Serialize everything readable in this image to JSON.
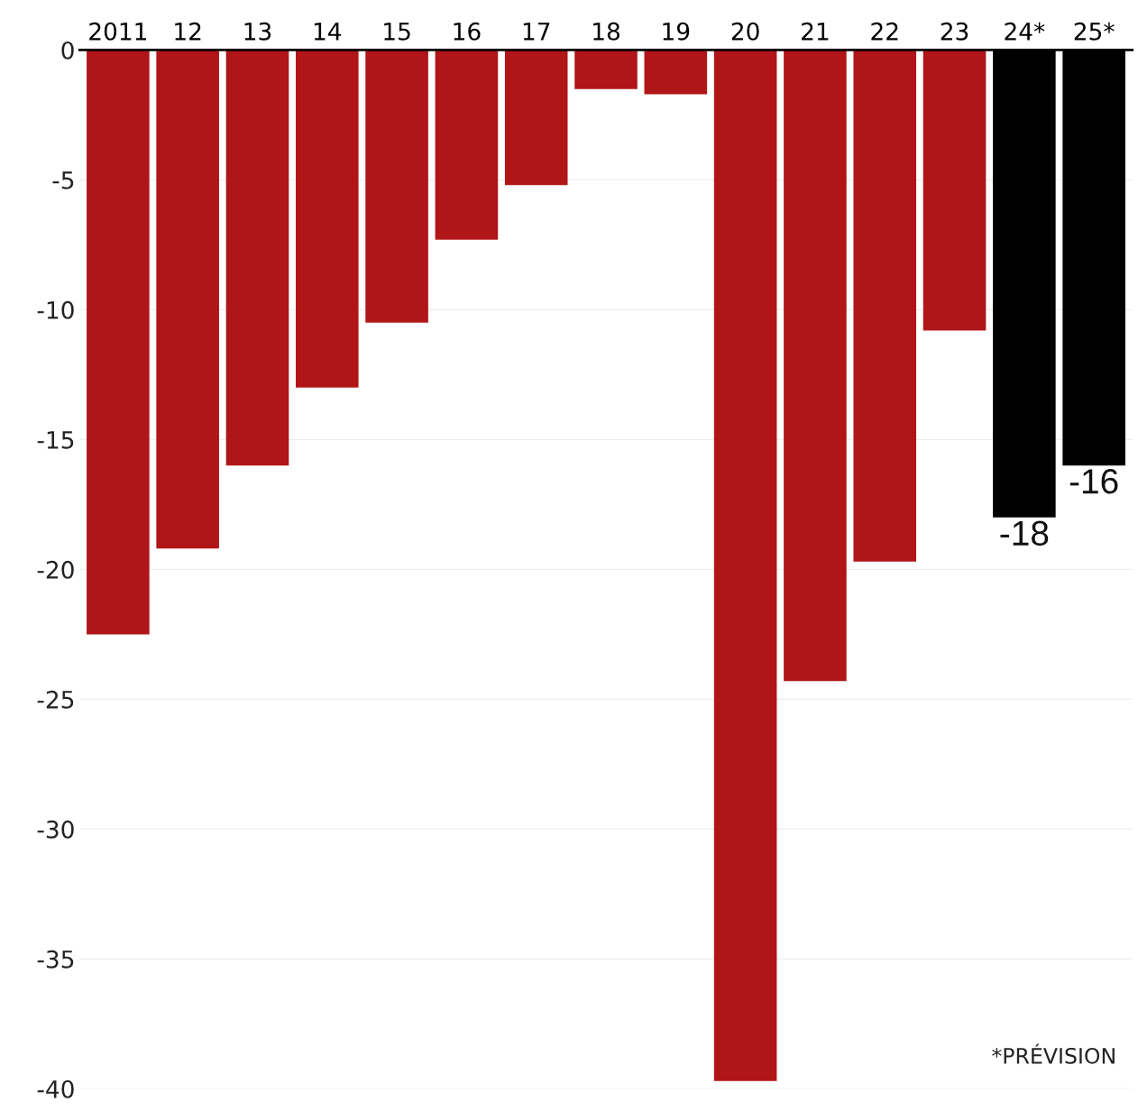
{
  "chart_data": {
    "type": "bar",
    "categories": [
      "2011",
      "12",
      "13",
      "14",
      "15",
      "16",
      "17",
      "18",
      "19",
      "20",
      "21",
      "22",
      "23",
      "24*",
      "25*"
    ],
    "values": [
      -22.5,
      -19.2,
      -16.0,
      -13.0,
      -10.5,
      -7.3,
      -5.2,
      -1.5,
      -1.7,
      -39.7,
      -24.3,
      -19.7,
      -10.8,
      -18,
      -16
    ],
    "colors": [
      "#b01517",
      "#b01517",
      "#b01517",
      "#b01517",
      "#b01517",
      "#b01517",
      "#b01517",
      "#b01517",
      "#b01517",
      "#b01517",
      "#b01517",
      "#b01517",
      "#b01517",
      "#000000",
      "#000000"
    ],
    "value_labels": [
      null,
      null,
      null,
      null,
      null,
      null,
      null,
      null,
      null,
      null,
      null,
      null,
      null,
      "-18",
      "-16"
    ],
    "ylim": [
      -40,
      0
    ],
    "yticks": [
      0,
      -5,
      -10,
      -15,
      -20,
      -25,
      -30,
      -35,
      -40
    ],
    "grid": "y",
    "annotations": [
      "*PRÉVISION"
    ]
  }
}
